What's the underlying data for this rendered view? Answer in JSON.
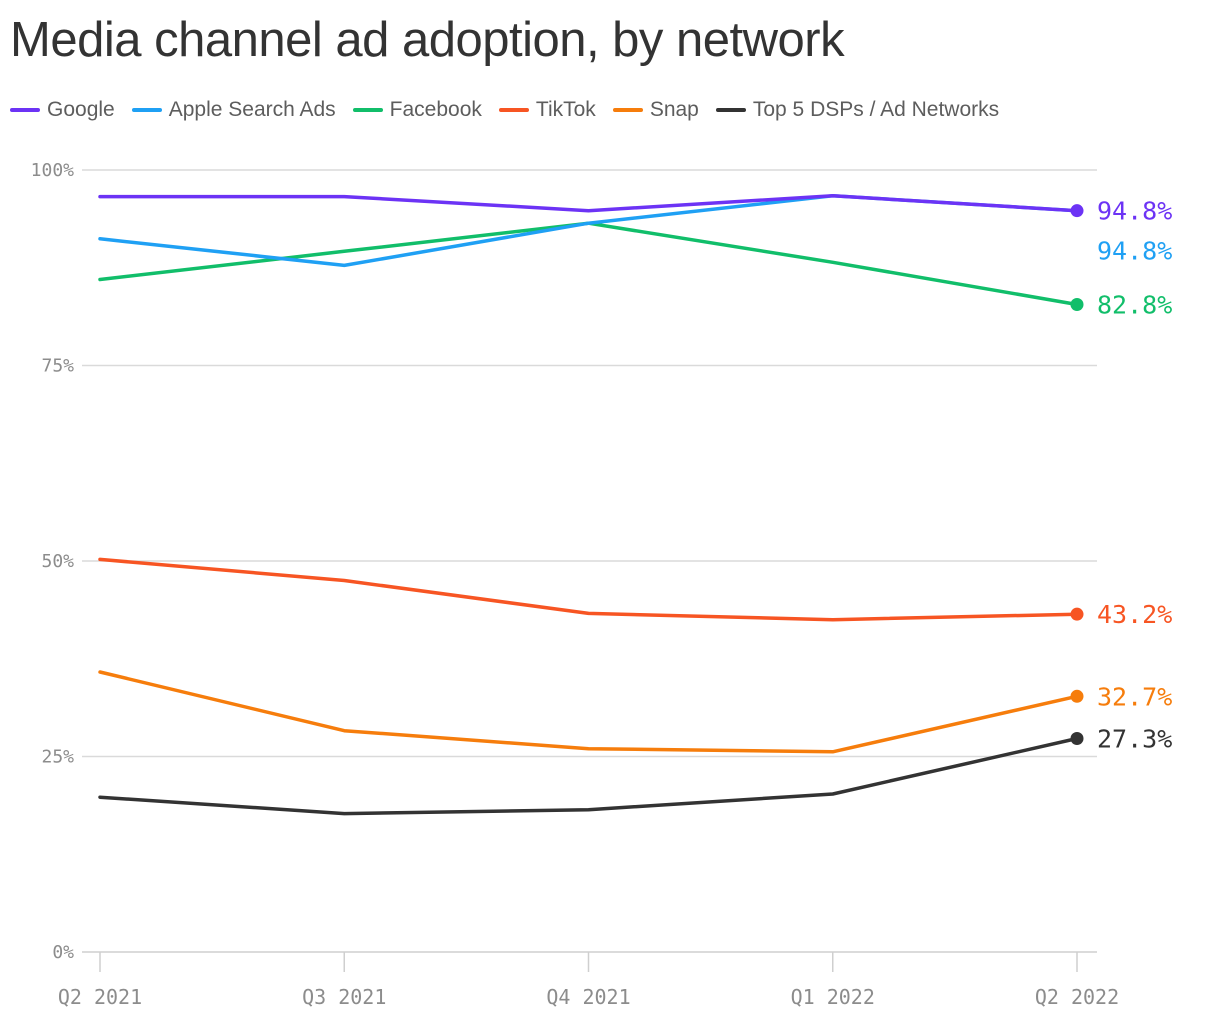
{
  "chart_data": {
    "type": "line",
    "title": "Media channel ad adoption, by network",
    "xlabel": "",
    "ylabel": "",
    "x": [
      "Q2 2021",
      "Q3 2021",
      "Q4 2021",
      "Q1 2022",
      "Q2 2022"
    ],
    "ylim": [
      0,
      100
    ],
    "y_ticks": [
      "0%",
      "25%",
      "50%",
      "75%",
      "100%"
    ],
    "y_tick_values": [
      0,
      25,
      50,
      75,
      100
    ],
    "grid": true,
    "legend_position": "top-left",
    "series": [
      {
        "name": "Google",
        "color": "#6c33f5",
        "values": [
          96.6,
          96.6,
          94.8,
          96.7,
          94.8
        ],
        "end_label": "94.8%",
        "end_marker": true
      },
      {
        "name": "Apple Search Ads",
        "color": "#1fa0f4",
        "values": [
          91.2,
          87.8,
          93.2,
          96.7,
          94.8
        ],
        "end_label": "94.8%",
        "end_marker": false
      },
      {
        "name": "Facebook",
        "color": "#11be6a",
        "values": [
          86.0,
          89.6,
          93.2,
          88.2,
          82.8
        ],
        "end_label": "82.8%",
        "end_marker": true
      },
      {
        "name": "TikTok",
        "color": "#f75523",
        "values": [
          50.2,
          47.5,
          43.3,
          42.5,
          43.2
        ],
        "end_label": "43.2%",
        "end_marker": true
      },
      {
        "name": "Snap",
        "color": "#f67d0c",
        "values": [
          35.8,
          28.3,
          26.0,
          25.6,
          32.7
        ],
        "end_label": "32.7%",
        "end_marker": true
      },
      {
        "name": "Top 5 DSPs / Ad Networks",
        "color": "#333333",
        "values": [
          19.8,
          17.7,
          18.2,
          20.2,
          27.3
        ],
        "end_label": "27.3%",
        "end_marker": true
      }
    ]
  }
}
